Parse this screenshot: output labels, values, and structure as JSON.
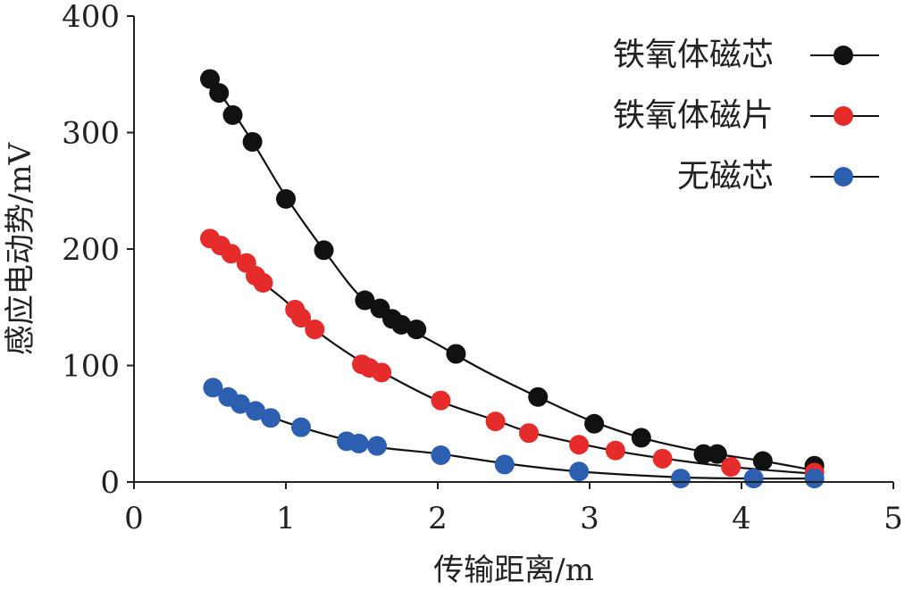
{
  "chart_data": {
    "type": "scatter",
    "title": "",
    "xlabel": "传输距离/m",
    "ylabel": "感应电动势/mV",
    "xlim": [
      0,
      5
    ],
    "ylim": [
      0,
      400
    ],
    "xticks": [
      0,
      1,
      2,
      3,
      4,
      5
    ],
    "yticks": [
      0,
      100,
      200,
      300,
      400
    ],
    "grid": false,
    "legend_position": "top-right",
    "series": [
      {
        "name": "铁氧体磁芯",
        "color": "#111111",
        "points": [
          [
            0.5,
            346
          ],
          [
            0.56,
            334
          ],
          [
            0.65,
            315
          ],
          [
            0.78,
            292
          ],
          [
            1.0,
            243
          ],
          [
            1.25,
            199
          ],
          [
            1.52,
            156
          ],
          [
            1.62,
            149
          ],
          [
            1.7,
            140
          ],
          [
            1.76,
            135
          ],
          [
            1.86,
            131
          ],
          [
            2.12,
            110
          ],
          [
            2.66,
            73
          ],
          [
            3.03,
            50
          ],
          [
            3.34,
            38
          ],
          [
            3.75,
            24
          ],
          [
            3.84,
            24
          ],
          [
            4.14,
            18
          ],
          [
            4.48,
            14
          ]
        ],
        "curve": [
          [
            0.5,
            346
          ],
          [
            0.65,
            318
          ],
          [
            0.8,
            288
          ],
          [
            1.0,
            245
          ],
          [
            1.25,
            199
          ],
          [
            1.5,
            158
          ],
          [
            1.75,
            136
          ],
          [
            2.0,
            118
          ],
          [
            2.3,
            96
          ],
          [
            2.66,
            73
          ],
          [
            3.0,
            53
          ],
          [
            3.34,
            38
          ],
          [
            3.75,
            26
          ],
          [
            4.14,
            18
          ],
          [
            4.48,
            10
          ]
        ]
      },
      {
        "name": "铁氧体磁片",
        "color": "#e62b2b",
        "points": [
          [
            0.5,
            209
          ],
          [
            0.57,
            203
          ],
          [
            0.64,
            196
          ],
          [
            0.74,
            188
          ],
          [
            0.8,
            177
          ],
          [
            0.85,
            171
          ],
          [
            1.06,
            148
          ],
          [
            1.1,
            141
          ],
          [
            1.19,
            131
          ],
          [
            1.5,
            101
          ],
          [
            1.55,
            98
          ],
          [
            1.63,
            94
          ],
          [
            2.02,
            70
          ],
          [
            2.38,
            52
          ],
          [
            2.6,
            42
          ],
          [
            2.93,
            32
          ],
          [
            3.17,
            27
          ],
          [
            3.48,
            20
          ],
          [
            3.93,
            13
          ],
          [
            4.48,
            8
          ]
        ],
        "curve": [
          [
            0.5,
            209
          ],
          [
            0.7,
            190
          ],
          [
            0.85,
            171
          ],
          [
            1.0,
            155
          ],
          [
            1.2,
            130
          ],
          [
            1.5,
            103
          ],
          [
            1.65,
            93
          ],
          [
            2.0,
            70
          ],
          [
            2.38,
            53
          ],
          [
            2.6,
            43
          ],
          [
            2.93,
            33
          ],
          [
            3.2,
            26
          ],
          [
            3.5,
            20
          ],
          [
            3.93,
            13
          ],
          [
            4.48,
            7
          ]
        ]
      },
      {
        "name": "无磁芯",
        "color": "#2d5fb0",
        "points": [
          [
            0.52,
            81
          ],
          [
            0.62,
            73
          ],
          [
            0.7,
            67
          ],
          [
            0.8,
            61
          ],
          [
            0.9,
            55
          ],
          [
            1.1,
            47
          ],
          [
            1.4,
            35
          ],
          [
            1.48,
            33
          ],
          [
            1.6,
            31
          ],
          [
            2.02,
            23
          ],
          [
            2.44,
            15
          ],
          [
            2.93,
            9
          ],
          [
            3.6,
            3
          ],
          [
            4.08,
            3
          ],
          [
            4.48,
            3
          ]
        ],
        "curve": [
          [
            0.52,
            81
          ],
          [
            0.7,
            67
          ],
          [
            0.9,
            56
          ],
          [
            1.1,
            47
          ],
          [
            1.4,
            36
          ],
          [
            1.6,
            30
          ],
          [
            2.02,
            24
          ],
          [
            2.44,
            16
          ],
          [
            2.93,
            9
          ],
          [
            3.6,
            4
          ],
          [
            4.08,
            3
          ],
          [
            4.48,
            3
          ]
        ]
      }
    ]
  }
}
